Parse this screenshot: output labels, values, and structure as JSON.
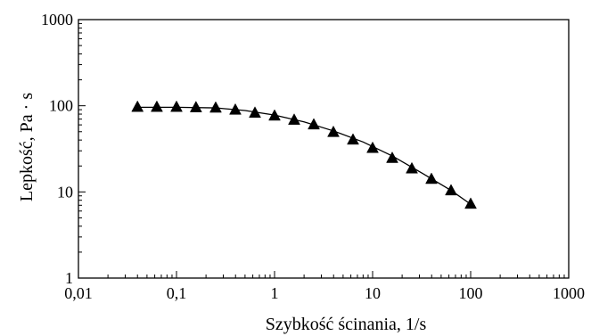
{
  "chart_data": {
    "type": "line",
    "xlabel": "Szybkość ścinania, 1/s",
    "ylabel": "Lepkość, Pa · s",
    "xscale": "log",
    "yscale": "log",
    "xlim": [
      0.01,
      1000
    ],
    "ylim": [
      1,
      1000
    ],
    "grid": false,
    "x_tick_labels": [
      "0,01",
      "0,1",
      "1",
      "10",
      "100",
      "1000"
    ],
    "y_tick_labels": [
      "1",
      "10",
      "100",
      "1000"
    ],
    "series": [
      {
        "marker": "triangle",
        "color": "#000000",
        "x": [
          0.04,
          0.063,
          0.1,
          0.158,
          0.251,
          0.398,
          0.631,
          1.0,
          1.585,
          2.512,
          3.981,
          6.31,
          10,
          15.85,
          25.12,
          39.81,
          63.1,
          100
        ],
        "y": [
          96,
          96,
          96,
          95,
          94,
          89,
          82,
          76,
          68,
          60,
          49,
          40,
          32,
          24.5,
          18.5,
          14,
          10.3,
          7.2
        ]
      }
    ],
    "fit_line": {
      "color": "#000000",
      "x": [
        0.04,
        0.1,
        0.25,
        0.5,
        1,
        2,
        4,
        8,
        16,
        32,
        64,
        100
      ],
      "y": [
        96,
        96,
        94.5,
        88,
        78,
        65,
        51,
        38,
        26,
        16.5,
        10.3,
        7.2
      ]
    }
  }
}
